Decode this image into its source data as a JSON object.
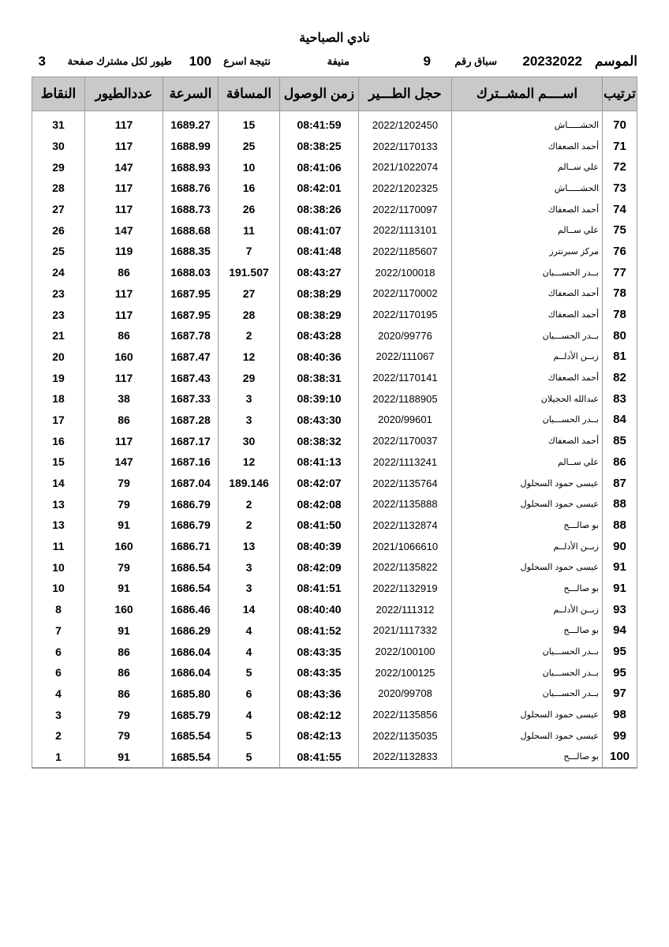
{
  "title": "نادي الصباحية",
  "info": {
    "season_label": "الموسم",
    "season_value": "20232022",
    "race_label": "سباق رقم",
    "race_value": "9",
    "race_type": "منيفة",
    "fastest_label": "نتيجة اسرع",
    "fastest_value": "100",
    "per_member_label": "طيور لكل مشترك صفحة",
    "page_value": "3"
  },
  "table": {
    "headers": [
      "ترتيب",
      "اســــم المشــترك",
      "حجل الطـــير",
      "زمن الوصول",
      "المسافة",
      "السرعة",
      "عددالطيور",
      "النقاط"
    ],
    "rows": [
      [
        "70",
        "الحشـــــاش",
        "2022/1202450",
        "08:41:59",
        "15",
        "1689.27",
        "117",
        "31"
      ],
      [
        "71",
        "أحمد الصعفاك",
        "2022/1170133",
        "08:38:25",
        "25",
        "1688.99",
        "117",
        "30"
      ],
      [
        "72",
        "علي ســالم",
        "2021/1022074",
        "08:41:06",
        "10",
        "1688.93",
        "147",
        "29"
      ],
      [
        "73",
        "الحشـــــاش",
        "2022/1202325",
        "08:42:01",
        "16",
        "1688.76",
        "117",
        "28"
      ],
      [
        "74",
        "أحمد الصعفاك",
        "2022/1170097",
        "08:38:26",
        "26",
        "1688.73",
        "117",
        "27"
      ],
      [
        "75",
        "علي ســالم",
        "2022/1113101",
        "08:41:07",
        "11",
        "1688.68",
        "147",
        "26"
      ],
      [
        "76",
        "مركز سبرنترز",
        "2022/1185607",
        "08:41:48",
        "7",
        "1688.35",
        "119",
        "25"
      ],
      [
        "77",
        "بــدر الحســـيان",
        "2022/100018",
        "08:43:27",
        "191.507",
        "1688.03",
        "86",
        "24"
      ],
      [
        "78",
        "أحمد الصعفاك",
        "2022/1170002",
        "08:38:29",
        "27",
        "1687.95",
        "117",
        "23"
      ],
      [
        "78",
        "أحمد الصعفاك",
        "2022/1170195",
        "08:38:29",
        "28",
        "1687.95",
        "117",
        "23"
      ],
      [
        "80",
        "بــدر الحســـيان",
        "2020/99776",
        "08:43:28",
        "2",
        "1687.78",
        "86",
        "21"
      ],
      [
        "81",
        "زبــن الأدلــم",
        "2022/111067",
        "08:40:36",
        "12",
        "1687.47",
        "160",
        "20"
      ],
      [
        "82",
        "أحمد الصعفاك",
        "2022/1170141",
        "08:38:31",
        "29",
        "1687.43",
        "117",
        "19"
      ],
      [
        "83",
        "عبدالله الحجيلان",
        "2022/1188905",
        "08:39:10",
        "3",
        "1687.33",
        "38",
        "18"
      ],
      [
        "84",
        "بــدر الحســـيان",
        "2020/99601",
        "08:43:30",
        "3",
        "1687.28",
        "86",
        "17"
      ],
      [
        "85",
        "أحمد الصعفاك",
        "2022/1170037",
        "08:38:32",
        "30",
        "1687.17",
        "117",
        "16"
      ],
      [
        "86",
        "علي ســالم",
        "2022/1113241",
        "08:41:13",
        "12",
        "1687.16",
        "147",
        "15"
      ],
      [
        "87",
        "عيسى حمود السحلول",
        "2022/1135764",
        "08:42:07",
        "189.146",
        "1687.04",
        "79",
        "14"
      ],
      [
        "88",
        "عيسى حمود السحلول",
        "2022/1135888",
        "08:42:08",
        "2",
        "1686.79",
        "79",
        "13"
      ],
      [
        "88",
        "بو صالـــح",
        "2022/1132874",
        "08:41:50",
        "2",
        "1686.79",
        "91",
        "13"
      ],
      [
        "90",
        "زبــن الأدلــم",
        "2021/1066610",
        "08:40:39",
        "13",
        "1686.71",
        "160",
        "11"
      ],
      [
        "91",
        "عيسى حمود السحلول",
        "2022/1135822",
        "08:42:09",
        "3",
        "1686.54",
        "79",
        "10"
      ],
      [
        "91",
        "بو صالـــح",
        "2022/1132919",
        "08:41:51",
        "3",
        "1686.54",
        "91",
        "10"
      ],
      [
        "93",
        "زبــن الأدلــم",
        "2022/111312",
        "08:40:40",
        "14",
        "1686.46",
        "160",
        "8"
      ],
      [
        "94",
        "بو صالـــح",
        "2021/1117332",
        "08:41:52",
        "4",
        "1686.29",
        "91",
        "7"
      ],
      [
        "95",
        "بــدر الحســـيان",
        "2022/100100",
        "08:43:35",
        "4",
        "1686.04",
        "86",
        "6"
      ],
      [
        "95",
        "بــدر الحســـيان",
        "2022/100125",
        "08:43:35",
        "5",
        "1686.04",
        "86",
        "6"
      ],
      [
        "97",
        "بــدر الحســـيان",
        "2020/99708",
        "08:43:36",
        "6",
        "1685.80",
        "86",
        "4"
      ],
      [
        "98",
        "عيسى حمود السحلول",
        "2022/1135856",
        "08:42:12",
        "4",
        "1685.79",
        "79",
        "3"
      ],
      [
        "99",
        "عيسى حمود السحلول",
        "2022/1135035",
        "08:42:13",
        "5",
        "1685.54",
        "79",
        "2"
      ],
      [
        "100",
        "بو صالـــح",
        "2022/1132833",
        "08:41:55",
        "5",
        "1685.54",
        "91",
        "1"
      ]
    ]
  }
}
